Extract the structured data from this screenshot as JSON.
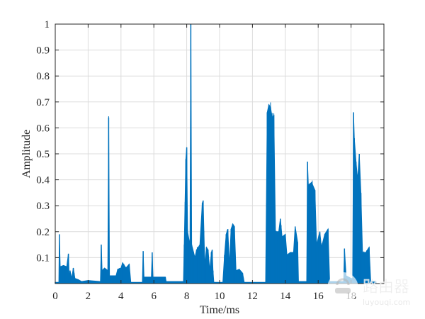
{
  "chart_data": {
    "type": "line",
    "title": "",
    "xlabel": "Time/ms",
    "ylabel": "Amplitude",
    "xlim": [
      0,
      20
    ],
    "ylim": [
      0,
      1
    ],
    "xticks": [
      0,
      2,
      4,
      6,
      8,
      10,
      12,
      14,
      16,
      18
    ],
    "yticks": [
      0.1,
      0.2,
      0.3,
      0.4,
      0.5,
      0.6,
      0.7,
      0.8,
      0.9,
      1
    ],
    "ytick_labels": [
      "0.1",
      "0.2",
      "0.3",
      "0.4",
      "0.5",
      "0.6",
      "0.7",
      "0.8",
      "0.9",
      "1"
    ],
    "grid": true,
    "color": "#0072BD",
    "series": [
      {
        "points": [
          [
            0,
            0.005
          ],
          [
            0.22,
            0.005
          ],
          [
            0.25,
            0.19
          ],
          [
            0.3,
            0.065
          ],
          [
            0.5,
            0.07
          ],
          [
            0.7,
            0.065
          ],
          [
            0.8,
            0.115
          ],
          [
            0.85,
            0.02
          ],
          [
            0.9,
            0.05
          ],
          [
            1.0,
            0.02
          ],
          [
            1.1,
            0.06
          ],
          [
            1.2,
            0.02
          ],
          [
            1.4,
            0.015
          ],
          [
            1.6,
            0.008
          ],
          [
            2.0,
            0.012
          ],
          [
            2.75,
            0.008
          ],
          [
            2.8,
            0.15
          ],
          [
            2.85,
            0.05
          ],
          [
            3.0,
            0.06
          ],
          [
            3.2,
            0.05
          ],
          [
            3.25,
            0.64
          ],
          [
            3.3,
            0.03
          ],
          [
            3.7,
            0.03
          ],
          [
            3.8,
            0.055
          ],
          [
            4.0,
            0.06
          ],
          [
            4.1,
            0.08
          ],
          [
            4.3,
            0.06
          ],
          [
            4.5,
            0.075
          ],
          [
            4.6,
            0.005
          ],
          [
            5.3,
            0.005
          ],
          [
            5.35,
            0.125
          ],
          [
            5.4,
            0.025
          ],
          [
            5.85,
            0.025
          ],
          [
            5.9,
            0.12
          ],
          [
            5.95,
            0.025
          ],
          [
            6.7,
            0.025
          ],
          [
            6.75,
            0.008
          ],
          [
            7.8,
            0.008
          ],
          [
            7.85,
            0.15
          ],
          [
            7.95,
            0.48
          ],
          [
            8.0,
            0.525
          ],
          [
            8.05,
            0.2
          ],
          [
            8.2,
            0.15
          ],
          [
            8.25,
            1.0
          ],
          [
            8.3,
            0.15
          ],
          [
            8.5,
            0.1
          ],
          [
            8.6,
            0.13
          ],
          [
            8.8,
            0.15
          ],
          [
            8.95,
            0.31
          ],
          [
            9.0,
            0.32
          ],
          [
            9.1,
            0.07
          ],
          [
            9.2,
            0.14
          ],
          [
            9.3,
            0.13
          ],
          [
            9.4,
            0.05
          ],
          [
            9.5,
            0.12
          ],
          [
            9.55,
            0.13
          ],
          [
            9.6,
            0.05
          ],
          [
            9.65,
            0.005
          ],
          [
            10.2,
            0.005
          ],
          [
            10.3,
            0.11
          ],
          [
            10.4,
            0.19
          ],
          [
            10.5,
            0.21
          ],
          [
            10.6,
            0.07
          ],
          [
            10.7,
            0.21
          ],
          [
            10.8,
            0.23
          ],
          [
            10.9,
            0.22
          ],
          [
            11.0,
            0.05
          ],
          [
            11.2,
            0.055
          ],
          [
            11.4,
            0.04
          ],
          [
            11.5,
            0.005
          ],
          [
            12.8,
            0.005
          ],
          [
            12.9,
            0.66
          ],
          [
            13.0,
            0.69
          ],
          [
            13.1,
            0.68
          ],
          [
            13.2,
            0.64
          ],
          [
            13.3,
            0.65
          ],
          [
            13.4,
            0.2
          ],
          [
            13.6,
            0.2
          ],
          [
            13.7,
            0.25
          ],
          [
            13.8,
            0.18
          ],
          [
            14.0,
            0.19
          ],
          [
            14.1,
            0.11
          ],
          [
            14.3,
            0.12
          ],
          [
            14.5,
            0.12
          ],
          [
            14.6,
            0.22
          ],
          [
            14.75,
            0.16
          ],
          [
            14.8,
            0.008
          ],
          [
            15.3,
            0.008
          ],
          [
            15.35,
            0.47
          ],
          [
            15.4,
            0.38
          ],
          [
            15.6,
            0.39
          ],
          [
            15.8,
            0.36
          ],
          [
            15.9,
            0.15
          ],
          [
            16.1,
            0.2
          ],
          [
            16.2,
            0.14
          ],
          [
            16.4,
            0.19
          ],
          [
            16.6,
            0.21
          ],
          [
            16.7,
            0.008
          ],
          [
            17.55,
            0.008
          ],
          [
            17.6,
            0.135
          ],
          [
            17.7,
            0.03
          ],
          [
            18.0,
            0.02
          ],
          [
            18.1,
            0.02
          ],
          [
            18.15,
            0.66
          ],
          [
            18.2,
            0.56
          ],
          [
            18.3,
            0.47
          ],
          [
            18.4,
            0.4
          ],
          [
            18.5,
            0.5
          ],
          [
            18.6,
            0.35
          ],
          [
            18.7,
            0.12
          ],
          [
            18.9,
            0.12
          ],
          [
            19.0,
            0.13
          ],
          [
            19.1,
            0.14
          ],
          [
            19.2,
            0.008
          ],
          [
            19.5,
            0.008
          ]
        ]
      }
    ]
  },
  "watermark": {
    "text": "路由器",
    "url": "luyouqi.com"
  }
}
